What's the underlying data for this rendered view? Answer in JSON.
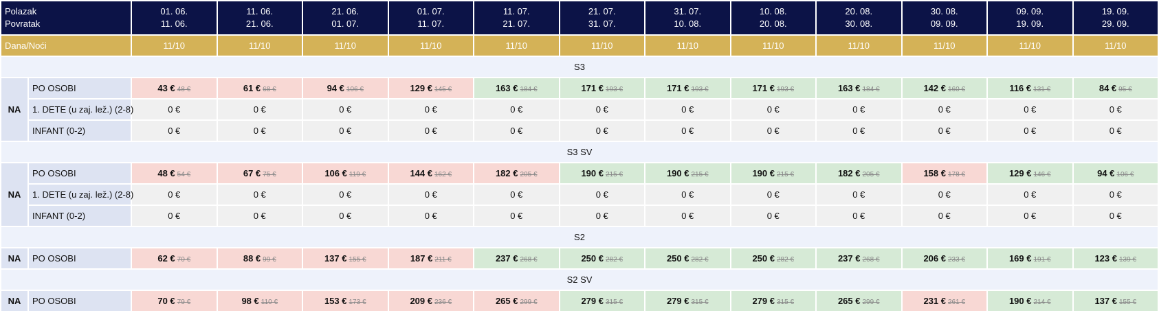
{
  "header": {
    "label_line1": "Polazak",
    "label_line2": "Povratak",
    "periods": [
      {
        "dep": "01. 06.",
        "ret": "11. 06."
      },
      {
        "dep": "11. 06.",
        "ret": "21. 06."
      },
      {
        "dep": "21. 06.",
        "ret": "01. 07."
      },
      {
        "dep": "01. 07.",
        "ret": "11. 07."
      },
      {
        "dep": "11. 07.",
        "ret": "21. 07."
      },
      {
        "dep": "21. 07.",
        "ret": "31. 07."
      },
      {
        "dep": "31. 07.",
        "ret": "10. 08."
      },
      {
        "dep": "10. 08.",
        "ret": "20. 08."
      },
      {
        "dep": "20. 08.",
        "ret": "30. 08."
      },
      {
        "dep": "30. 08.",
        "ret": "09. 09."
      },
      {
        "dep": "09. 09.",
        "ret": "19. 09."
      },
      {
        "dep": "19. 09.",
        "ret": "29. 09."
      }
    ]
  },
  "nights": {
    "label": "Dana/Noći",
    "values": [
      "11/10",
      "11/10",
      "11/10",
      "11/10",
      "11/10",
      "11/10",
      "11/10",
      "11/10",
      "11/10",
      "11/10",
      "11/10",
      "11/10"
    ]
  },
  "colors": {
    "header_bg": "#0c1347",
    "nights_bg": "#d4b257",
    "price_red": "#f8d8d4",
    "price_green": "#d6ead6",
    "neutral_grey": "#f0f0f0",
    "label_bg": "#dde3f2",
    "section_bg": "#eef2fb"
  },
  "sections": [
    {
      "title": "S3",
      "service": "NA",
      "rows": [
        {
          "label": "PO OSOBI",
          "cells": [
            {
              "price": "43 €",
              "old": "48 €",
              "tone": "red"
            },
            {
              "price": "61 €",
              "old": "68 €",
              "tone": "red"
            },
            {
              "price": "94 €",
              "old": "106 €",
              "tone": "red"
            },
            {
              "price": "129 €",
              "old": "145 €",
              "tone": "red"
            },
            {
              "price": "163 €",
              "old": "184 €",
              "tone": "green"
            },
            {
              "price": "171 €",
              "old": "193 €",
              "tone": "green"
            },
            {
              "price": "171 €",
              "old": "193 €",
              "tone": "green"
            },
            {
              "price": "171 €",
              "old": "193 €",
              "tone": "green"
            },
            {
              "price": "163 €",
              "old": "184 €",
              "tone": "green"
            },
            {
              "price": "142 €",
              "old": "160 €",
              "tone": "green"
            },
            {
              "price": "116 €",
              "old": "131 €",
              "tone": "green"
            },
            {
              "price": "84 €",
              "old": "95 €",
              "tone": "green"
            }
          ]
        },
        {
          "label": "1. DETE (u zaj. lež.) (2-8)",
          "cells": [
            {
              "price": "0 €"
            },
            {
              "price": "0 €"
            },
            {
              "price": "0 €"
            },
            {
              "price": "0 €"
            },
            {
              "price": "0 €"
            },
            {
              "price": "0 €"
            },
            {
              "price": "0 €"
            },
            {
              "price": "0 €"
            },
            {
              "price": "0 €"
            },
            {
              "price": "0 €"
            },
            {
              "price": "0 €"
            },
            {
              "price": "0 €"
            }
          ]
        },
        {
          "label": "INFANT (0-2)",
          "cells": [
            {
              "price": "0 €"
            },
            {
              "price": "0 €"
            },
            {
              "price": "0 €"
            },
            {
              "price": "0 €"
            },
            {
              "price": "0 €"
            },
            {
              "price": "0 €"
            },
            {
              "price": "0 €"
            },
            {
              "price": "0 €"
            },
            {
              "price": "0 €"
            },
            {
              "price": "0 €"
            },
            {
              "price": "0 €"
            },
            {
              "price": "0 €"
            }
          ]
        }
      ]
    },
    {
      "title": "S3 SV",
      "service": "NA",
      "rows": [
        {
          "label": "PO OSOBI",
          "cells": [
            {
              "price": "48 €",
              "old": "54 €",
              "tone": "red"
            },
            {
              "price": "67 €",
              "old": "75 €",
              "tone": "red"
            },
            {
              "price": "106 €",
              "old": "119 €",
              "tone": "red"
            },
            {
              "price": "144 €",
              "old": "162 €",
              "tone": "red"
            },
            {
              "price": "182 €",
              "old": "205 €",
              "tone": "red"
            },
            {
              "price": "190 €",
              "old": "215 €",
              "tone": "green"
            },
            {
              "price": "190 €",
              "old": "215 €",
              "tone": "green"
            },
            {
              "price": "190 €",
              "old": "215 €",
              "tone": "green"
            },
            {
              "price": "182 €",
              "old": "205 €",
              "tone": "green"
            },
            {
              "price": "158 €",
              "old": "178 €",
              "tone": "red"
            },
            {
              "price": "129 €",
              "old": "146 €",
              "tone": "green"
            },
            {
              "price": "94 €",
              "old": "106 €",
              "tone": "green"
            }
          ]
        },
        {
          "label": "1. DETE (u zaj. lež.) (2-8)",
          "cells": [
            {
              "price": "0 €"
            },
            {
              "price": "0 €"
            },
            {
              "price": "0 €"
            },
            {
              "price": "0 €"
            },
            {
              "price": "0 €"
            },
            {
              "price": "0 €"
            },
            {
              "price": "0 €"
            },
            {
              "price": "0 €"
            },
            {
              "price": "0 €"
            },
            {
              "price": "0 €"
            },
            {
              "price": "0 €"
            },
            {
              "price": "0 €"
            }
          ]
        },
        {
          "label": "INFANT (0-2)",
          "cells": [
            {
              "price": "0 €"
            },
            {
              "price": "0 €"
            },
            {
              "price": "0 €"
            },
            {
              "price": "0 €"
            },
            {
              "price": "0 €"
            },
            {
              "price": "0 €"
            },
            {
              "price": "0 €"
            },
            {
              "price": "0 €"
            },
            {
              "price": "0 €"
            },
            {
              "price": "0 €"
            },
            {
              "price": "0 €"
            },
            {
              "price": "0 €"
            }
          ]
        }
      ]
    },
    {
      "title": "S2",
      "service": "NA",
      "rows": [
        {
          "label": "PO OSOBI",
          "cells": [
            {
              "price": "62 €",
              "old": "70 €",
              "tone": "red"
            },
            {
              "price": "88 €",
              "old": "99 €",
              "tone": "red"
            },
            {
              "price": "137 €",
              "old": "155 €",
              "tone": "red"
            },
            {
              "price": "187 €",
              "old": "211 €",
              "tone": "red"
            },
            {
              "price": "237 €",
              "old": "268 €",
              "tone": "green"
            },
            {
              "price": "250 €",
              "old": "282 €",
              "tone": "green"
            },
            {
              "price": "250 €",
              "old": "282 €",
              "tone": "green"
            },
            {
              "price": "250 €",
              "old": "282 €",
              "tone": "green"
            },
            {
              "price": "237 €",
              "old": "268 €",
              "tone": "green"
            },
            {
              "price": "206 €",
              "old": "233 €",
              "tone": "green"
            },
            {
              "price": "169 €",
              "old": "191 €",
              "tone": "green"
            },
            {
              "price": "123 €",
              "old": "139 €",
              "tone": "green"
            }
          ]
        }
      ]
    },
    {
      "title": "S2 SV",
      "service": "NA",
      "rows": [
        {
          "label": "PO OSOBI",
          "cells": [
            {
              "price": "70 €",
              "old": "79 €",
              "tone": "red"
            },
            {
              "price": "98 €",
              "old": "110 €",
              "tone": "red"
            },
            {
              "price": "153 €",
              "old": "173 €",
              "tone": "red"
            },
            {
              "price": "209 €",
              "old": "236 €",
              "tone": "red"
            },
            {
              "price": "265 €",
              "old": "299 €",
              "tone": "red"
            },
            {
              "price": "279 €",
              "old": "315 €",
              "tone": "green"
            },
            {
              "price": "279 €",
              "old": "315 €",
              "tone": "green"
            },
            {
              "price": "279 €",
              "old": "315 €",
              "tone": "green"
            },
            {
              "price": "265 €",
              "old": "299 €",
              "tone": "green"
            },
            {
              "price": "231 €",
              "old": "261 €",
              "tone": "red"
            },
            {
              "price": "190 €",
              "old": "214 €",
              "tone": "green"
            },
            {
              "price": "137 €",
              "old": "155 €",
              "tone": "green"
            }
          ]
        }
      ]
    }
  ]
}
